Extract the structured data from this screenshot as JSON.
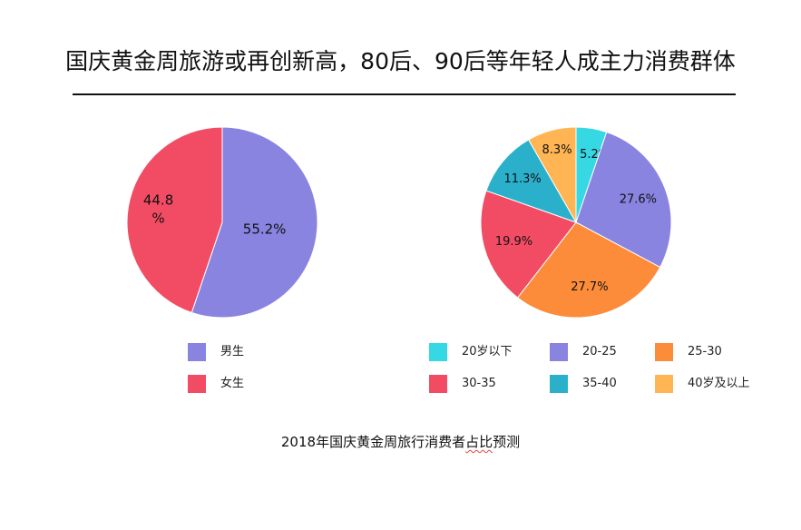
{
  "title": "国庆黄金周旅游或再创新高，80后、90后等年轻人成主力消费群体",
  "caption": {
    "before": "2018年国庆黄金周旅行消费者",
    "flagged": "占比",
    "after": "预测"
  },
  "chart_data": [
    {
      "type": "pie",
      "title": "",
      "categories": [
        "男生",
        "女生"
      ],
      "values": [
        55.2,
        44.8
      ],
      "value_labels": [
        "55.2%",
        "44.8%"
      ],
      "colors": [
        "#8884e0",
        "#f24c64"
      ],
      "start_angle_deg": 0,
      "direction": "clockwise",
      "legend": "bottom"
    },
    {
      "type": "pie",
      "title": "",
      "categories": [
        "20岁以下",
        "20-25",
        "25-30",
        "30-35",
        "35-40",
        "40岁及以上"
      ],
      "values": [
        5.2,
        27.6,
        27.7,
        19.9,
        11.3,
        8.3
      ],
      "value_labels": [
        "5.2%",
        "27.6%",
        "27.7%",
        "19.9%",
        "11.3%",
        "8.3%"
      ],
      "colors": [
        "#36d8e4",
        "#8884e0",
        "#fc8c3a",
        "#f24c64",
        "#2bb0cc",
        "#ffb553"
      ],
      "start_angle_deg": 0,
      "direction": "clockwise",
      "legend": "bottom"
    }
  ]
}
